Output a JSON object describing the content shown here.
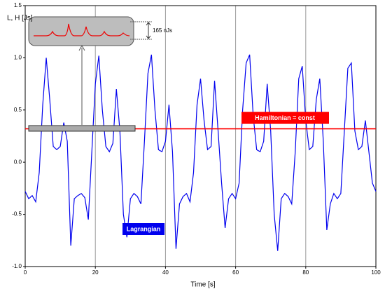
{
  "chart_data": {
    "type": "line",
    "ylabel": "L, H [Js]",
    "xlabel": "Time [s]",
    "xlim": [
      0,
      100
    ],
    "xticks": [
      0,
      20,
      40,
      60,
      80,
      100
    ],
    "ylim": [
      -1.0,
      1.5
    ],
    "yticks": [
      {
        "value": -1.0,
        "label": "-1.0"
      },
      {
        "value": -0.5,
        "label": "-0.5"
      },
      {
        "value": 0,
        "label": "0.0"
      },
      {
        "value": 0.5,
        "label": "0.5"
      },
      {
        "value": 1.0,
        "label": "1.0"
      },
      {
        "value": 1.5,
        "label": "1.5"
      }
    ],
    "grid": "x",
    "x": [
      0,
      1,
      2,
      3,
      4,
      5,
      6,
      7,
      8,
      9,
      10,
      11,
      12,
      13,
      14,
      15,
      16,
      17,
      18,
      19,
      20,
      21,
      22,
      23,
      24,
      25,
      26,
      27,
      28,
      29,
      30,
      31,
      32,
      33,
      34,
      35,
      36,
      37,
      38,
      39,
      40,
      41,
      42,
      43,
      44,
      45,
      46,
      47,
      48,
      49,
      50,
      51,
      52,
      53,
      54,
      55,
      56,
      57,
      58,
      59,
      60,
      61,
      62,
      63,
      64,
      65,
      66,
      67,
      68,
      69,
      70,
      71,
      72,
      73,
      74,
      75,
      76,
      77,
      78,
      79,
      80,
      81,
      82,
      83,
      84,
      85,
      86,
      87,
      88,
      89,
      90,
      91,
      92,
      93,
      94,
      95,
      96,
      97,
      98,
      99,
      100
    ],
    "series": [
      {
        "name": "Lagrangian",
        "color": "#0000ee",
        "values": [
          -0.28,
          -0.35,
          -0.32,
          -0.38,
          -0.1,
          0.55,
          1.0,
          0.6,
          0.15,
          0.12,
          0.15,
          0.38,
          0.2,
          -0.8,
          -0.35,
          -0.32,
          -0.3,
          -0.34,
          -0.55,
          0.1,
          0.75,
          1.02,
          0.5,
          0.15,
          0.1,
          0.18,
          0.7,
          0.3,
          -0.5,
          -0.72,
          -0.35,
          -0.3,
          -0.33,
          -0.4,
          0.2,
          0.85,
          1.03,
          0.5,
          0.12,
          0.1,
          0.2,
          0.55,
          0.1,
          -0.83,
          -0.4,
          -0.33,
          -0.3,
          -0.38,
          -0.1,
          0.55,
          0.8,
          0.4,
          0.12,
          0.15,
          0.78,
          0.3,
          -0.2,
          -0.63,
          -0.35,
          -0.3,
          -0.35,
          -0.2,
          0.5,
          0.95,
          1.03,
          0.45,
          0.12,
          0.1,
          0.2,
          0.75,
          0.3,
          -0.5,
          -0.85,
          -0.35,
          -0.3,
          -0.33,
          -0.4,
          0.1,
          0.8,
          0.92,
          0.4,
          0.12,
          0.15,
          0.6,
          0.8,
          0.2,
          -0.65,
          -0.4,
          -0.3,
          -0.35,
          -0.3,
          0.3,
          0.9,
          0.95,
          0.3,
          0.12,
          0.15,
          0.4,
          0.1,
          -0.2,
          -0.28
        ]
      },
      {
        "name": "Hamiltonian = const",
        "color": "#ff0000",
        "value": 0.32
      }
    ],
    "annotation": "165 nJs"
  }
}
